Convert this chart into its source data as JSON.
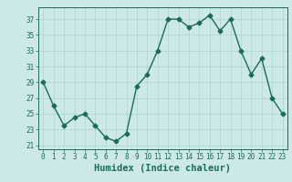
{
  "x": [
    0,
    1,
    2,
    3,
    4,
    5,
    6,
    7,
    8,
    9,
    10,
    11,
    12,
    13,
    14,
    15,
    16,
    17,
    18,
    19,
    20,
    21,
    22,
    23
  ],
  "y": [
    29,
    26,
    23.5,
    24.5,
    25,
    23.5,
    22,
    21.5,
    22.5,
    28.5,
    30,
    33,
    37,
    37,
    36,
    36.5,
    37.5,
    35.5,
    37,
    33,
    30,
    32,
    27,
    25
  ],
  "line_color": "#1a6b5a",
  "marker": "D",
  "marker_size": 2.5,
  "bg_color": "#cce8e8",
  "grid_color": "#aad4d4",
  "xlabel": "Humidex (Indice chaleur)",
  "ylim": [
    20.5,
    38.5
  ],
  "xlim": [
    -0.5,
    23.5
  ],
  "yticks": [
    21,
    23,
    25,
    27,
    29,
    31,
    33,
    35,
    37
  ],
  "xticks": [
    0,
    1,
    2,
    3,
    4,
    5,
    6,
    7,
    8,
    9,
    10,
    11,
    12,
    13,
    14,
    15,
    16,
    17,
    18,
    19,
    20,
    21,
    22,
    23
  ],
  "line_width": 1.0,
  "tick_label_size": 5.5,
  "xlabel_size": 7.5
}
